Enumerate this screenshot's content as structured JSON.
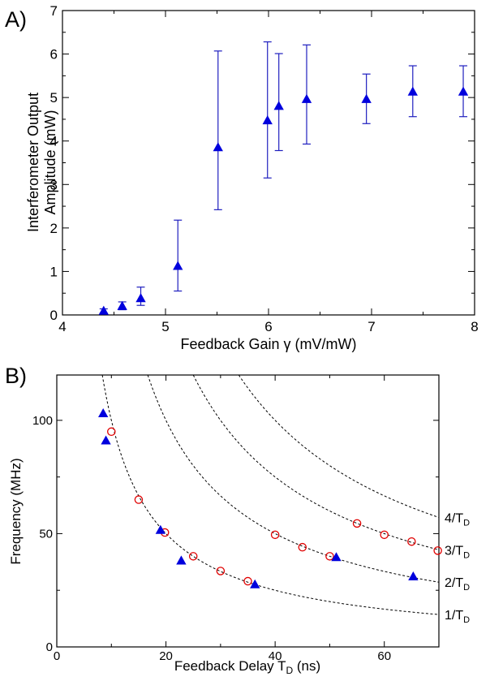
{
  "chart_data": [
    {
      "panel_label": "A)",
      "type": "scatter",
      "xlabel_main": "Feedback Gain ",
      "xlabel_symbol": "γ",
      "xlabel_unit": " (mV/mW)",
      "ylabel_lines": [
        "Interferometer Output",
        "Amplitude (mW)"
      ],
      "xlim": [
        4,
        8
      ],
      "ylim": [
        0,
        7
      ],
      "xticks": [
        4,
        5,
        6,
        7,
        8
      ],
      "yticks": [
        0,
        1,
        2,
        3,
        4,
        5,
        6,
        7
      ],
      "marker": "triangle",
      "marker_color": "#0000dd",
      "points": [
        {
          "x": 4.4,
          "y": 0.09,
          "err_lo": 0.04,
          "err_hi": 0.14
        },
        {
          "x": 4.58,
          "y": 0.2,
          "err_lo": 0.12,
          "err_hi": 0.3
        },
        {
          "x": 4.76,
          "y": 0.38,
          "err_lo": 0.22,
          "err_hi": 0.64
        },
        {
          "x": 5.12,
          "y": 1.12,
          "err_lo": 0.55,
          "err_hi": 2.18
        },
        {
          "x": 5.51,
          "y": 3.85,
          "err_lo": 2.42,
          "err_hi": 6.07
        },
        {
          "x": 5.99,
          "y": 4.47,
          "err_lo": 3.15,
          "err_hi": 6.28
        },
        {
          "x": 6.1,
          "y": 4.8,
          "err_lo": 3.78,
          "err_hi": 6.01
        },
        {
          "x": 6.37,
          "y": 4.96,
          "err_lo": 3.93,
          "err_hi": 6.21
        },
        {
          "x": 6.95,
          "y": 4.96,
          "err_lo": 4.4,
          "err_hi": 5.54
        },
        {
          "x": 7.4,
          "y": 5.13,
          "err_lo": 4.56,
          "err_hi": 5.73
        },
        {
          "x": 7.89,
          "y": 5.13,
          "err_lo": 4.56,
          "err_hi": 5.73
        }
      ]
    },
    {
      "panel_label": "B)",
      "type": "scatter",
      "xlabel_main": "Feedback Delay  T",
      "xlabel_sub": "D",
      "xlabel_unit": " (ns)",
      "ylabel": "Frequency (MHz)",
      "xlim": [
        0,
        70
      ],
      "ylim": [
        0,
        120
      ],
      "xticks": [
        0,
        20,
        40,
        60
      ],
      "yticks": [
        0,
        50,
        100
      ],
      "curves": [
        {
          "n": 1,
          "label_main": "1/T",
          "label_sub": "D"
        },
        {
          "n": 2,
          "label_main": "2/T",
          "label_sub": "D"
        },
        {
          "n": 3,
          "label_main": "3/T",
          "label_sub": "D"
        },
        {
          "n": 4,
          "label_main": "4/T",
          "label_sub": "D"
        }
      ],
      "triangles": {
        "color": "#0000dd",
        "points": [
          {
            "x": 8.5,
            "y": 103
          },
          {
            "x": 9.0,
            "y": 91
          },
          {
            "x": 19.0,
            "y": 51.5
          },
          {
            "x": 22.8,
            "y": 38
          },
          {
            "x": 36.3,
            "y": 27.5
          },
          {
            "x": 51.2,
            "y": 39.5
          },
          {
            "x": 65.3,
            "y": 31
          }
        ]
      },
      "circles": {
        "color": "#e00000",
        "points": [
          {
            "x": 10,
            "y": 95
          },
          {
            "x": 15,
            "y": 65
          },
          {
            "x": 19.8,
            "y": 50.5
          },
          {
            "x": 25,
            "y": 40
          },
          {
            "x": 30,
            "y": 33.5
          },
          {
            "x": 35,
            "y": 29
          },
          {
            "x": 40,
            "y": 49.5
          },
          {
            "x": 45,
            "y": 44
          },
          {
            "x": 50,
            "y": 40
          },
          {
            "x": 55,
            "y": 54.5
          },
          {
            "x": 60,
            "y": 49.5
          },
          {
            "x": 65,
            "y": 46.5
          },
          {
            "x": 69.8,
            "y": 42.5
          }
        ]
      }
    }
  ]
}
